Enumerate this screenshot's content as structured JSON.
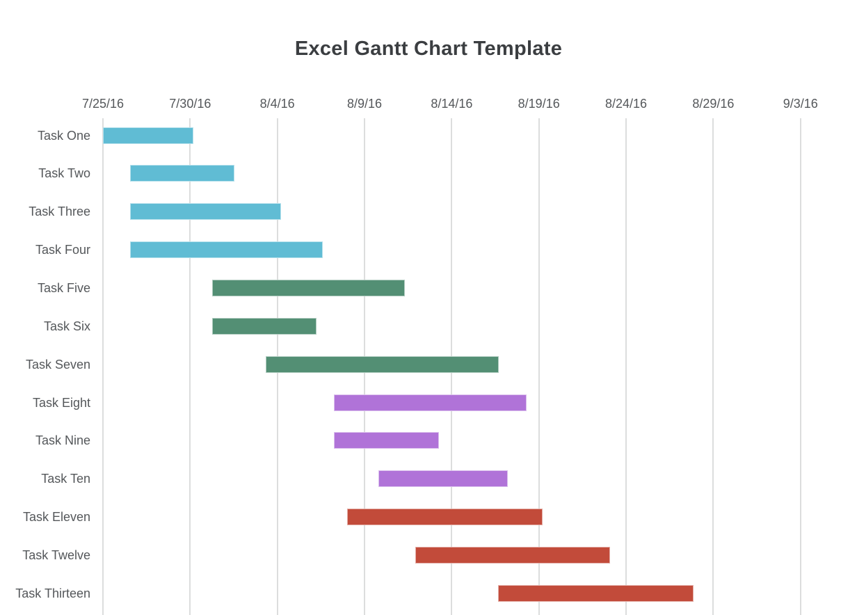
{
  "page": {
    "title": "Excel Gantt Chart Template"
  },
  "chart_data": {
    "type": "gantt",
    "title": "Excel Gantt Chart Template",
    "x_axis": {
      "position": "top",
      "tick_labels": [
        "7/25/16",
        "7/30/16",
        "8/4/16",
        "8/9/16",
        "8/14/16",
        "8/19/16",
        "8/24/16",
        "8/29/16",
        "9/3/16"
      ],
      "start_date": "7/25/16",
      "end_date": "9/3/16",
      "tick_interval_days": 5,
      "range_days": [
        0,
        40
      ],
      "grid": true
    },
    "palette": {
      "teal": "#60bcd4",
      "green": "#538f74",
      "purple": "#b073d8",
      "red": "#c24b3a"
    },
    "grid_color": "#dcdddd",
    "title_color": "#3b3e41",
    "label_color": "#54575a",
    "tasks": [
      {
        "label": "Task One",
        "start": "7/25/16",
        "end": "7/30/16",
        "start_day": 0,
        "end_day": 5.2,
        "color": "teal"
      },
      {
        "label": "Task Two",
        "start": "7/26/16",
        "end": "8/1/16",
        "start_day": 1.55,
        "end_day": 7.55,
        "color": "teal"
      },
      {
        "label": "Task Three",
        "start": "7/26/16",
        "end": "8/4/16",
        "start_day": 1.55,
        "end_day": 10.2,
        "color": "teal"
      },
      {
        "label": "Task Four",
        "start": "7/26/16",
        "end": "8/6/16",
        "start_day": 1.55,
        "end_day": 12.6,
        "color": "teal"
      },
      {
        "label": "Task Five",
        "start": "7/31/16",
        "end": "8/11/16",
        "start_day": 6.25,
        "end_day": 17.3,
        "color": "green"
      },
      {
        "label": "Task Six",
        "start": "7/31/16",
        "end": "8/6/16",
        "start_day": 6.25,
        "end_day": 12.25,
        "color": "green"
      },
      {
        "label": "Task Seven",
        "start": "8/3/16",
        "end": "8/16/16",
        "start_day": 9.35,
        "end_day": 22.7,
        "color": "green"
      },
      {
        "label": "Task Eight",
        "start": "8/7/16",
        "end": "8/18/16",
        "start_day": 13.25,
        "end_day": 24.3,
        "color": "purple"
      },
      {
        "label": "Task Nine",
        "start": "8/7/16",
        "end": "8/13/16",
        "start_day": 13.25,
        "end_day": 19.25,
        "color": "purple"
      },
      {
        "label": "Task Ten",
        "start": "8/10/16",
        "end": "8/17/16",
        "start_day": 15.8,
        "end_day": 23.2,
        "color": "purple"
      },
      {
        "label": "Task Eleven",
        "start": "8/8/16",
        "end": "8/19/16",
        "start_day": 14.0,
        "end_day": 25.2,
        "color": "red"
      },
      {
        "label": "Task Twelve",
        "start": "8/12/16",
        "end": "8/23/16",
        "start_day": 17.9,
        "end_day": 29.1,
        "color": "red"
      },
      {
        "label": "Task Thirteen",
        "start": "8/16/16",
        "end": "8/27/16",
        "start_day": 22.65,
        "end_day": 33.85,
        "color": "red"
      }
    ]
  }
}
